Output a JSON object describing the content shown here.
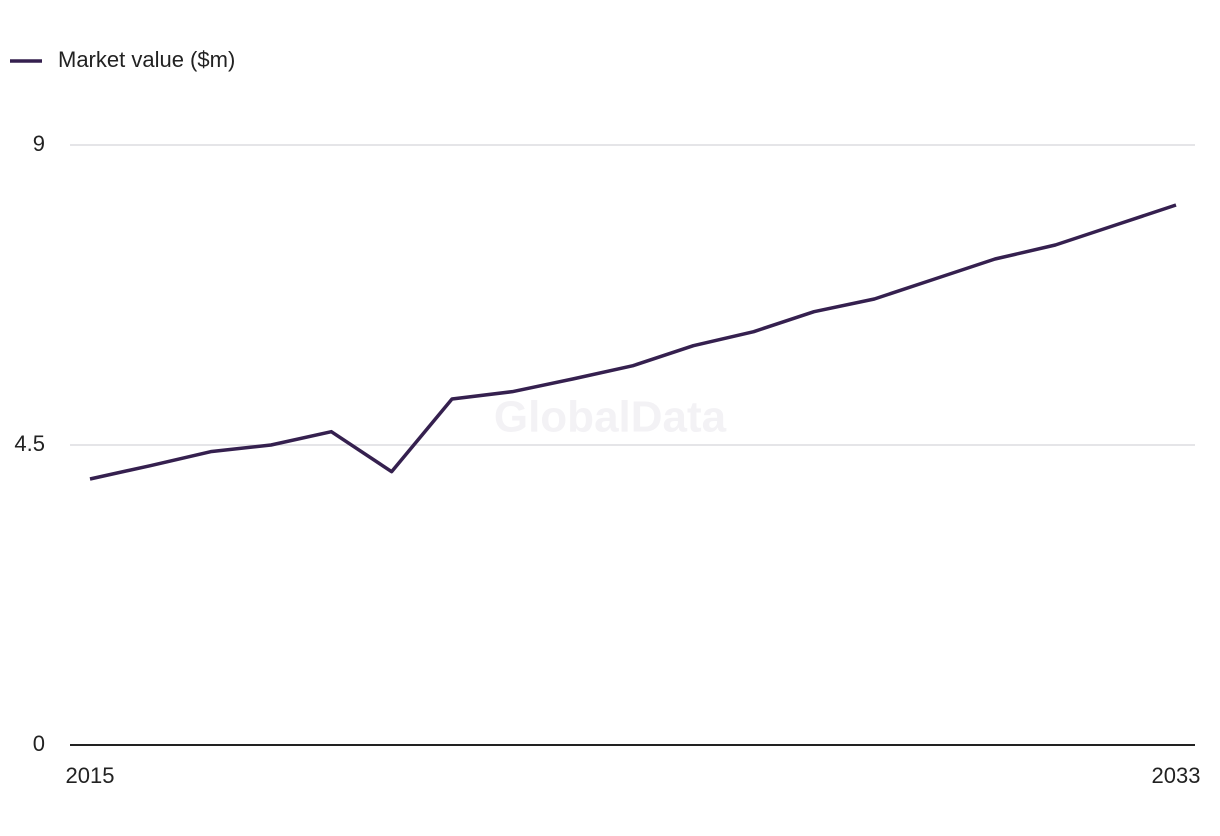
{
  "chart_data": {
    "type": "line",
    "watermark": "GlobalData",
    "x": [
      2015,
      2016,
      2017,
      2018,
      2019,
      2020,
      2021,
      2022,
      2023,
      2024,
      2025,
      2026,
      2027,
      2028,
      2029,
      2030,
      2031,
      2032,
      2033
    ],
    "series": [
      {
        "name": "Market value ($m)",
        "color": "#35204f",
        "values": [
          3.99,
          4.19,
          4.4,
          4.5,
          4.7,
          4.1,
          5.19,
          5.3,
          5.49,
          5.69,
          5.99,
          6.2,
          6.5,
          6.69,
          6.99,
          7.29,
          7.5,
          7.8,
          8.1
        ]
      }
    ],
    "xlim": [
      2015,
      2033
    ],
    "xticks": [
      2015,
      2033
    ],
    "ylim": [
      0,
      9
    ],
    "yticks": [
      0,
      4.5,
      9
    ],
    "grid": true,
    "legend": "top-left"
  }
}
